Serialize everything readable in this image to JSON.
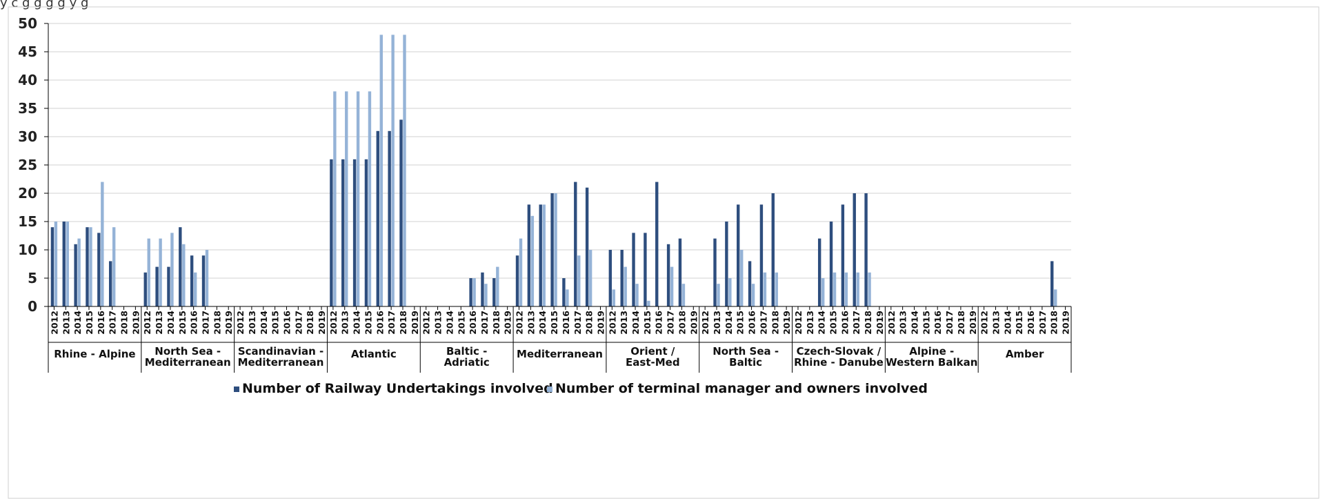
{
  "header_fragment": "y c  g        g                g                                                    g y g",
  "colors": {
    "series1": "#2E4E7E",
    "series2": "#95B3D7",
    "grid": "#D9D9D9",
    "axis": "#000000",
    "border": "#CFCFCF"
  },
  "chart_data": {
    "type": "bar",
    "title": "",
    "xlabel": "",
    "ylabel": "",
    "ylim": [
      0,
      50
    ],
    "yticks": [
      0,
      5,
      10,
      15,
      20,
      25,
      30,
      35,
      40,
      45,
      50
    ],
    "grid": true,
    "legend_position": "bottom",
    "years": [
      "2012",
      "2013",
      "2014",
      "2015",
      "2016",
      "2017",
      "2018",
      "2019"
    ],
    "groups": [
      {
        "name": "Rhine - Alpine",
        "railway": [
          14,
          15,
          11,
          14,
          13,
          8,
          null,
          null
        ],
        "terminal": [
          15,
          15,
          12,
          14,
          22,
          14,
          null,
          null
        ]
      },
      {
        "name": "North Sea - Mediterranean",
        "railway": [
          6,
          7,
          7,
          14,
          9,
          9,
          null,
          null
        ],
        "terminal": [
          12,
          12,
          13,
          11,
          6,
          10,
          null,
          null
        ]
      },
      {
        "name": "Scandinavian - Mediterranean",
        "railway": [
          null,
          null,
          null,
          null,
          null,
          null,
          null,
          null
        ],
        "terminal": [
          null,
          null,
          null,
          null,
          null,
          null,
          null,
          null
        ]
      },
      {
        "name": "Atlantic",
        "railway": [
          26,
          26,
          26,
          26,
          31,
          31,
          33,
          null
        ],
        "terminal": [
          38,
          38,
          38,
          38,
          48,
          48,
          48,
          null
        ]
      },
      {
        "name": "Baltic - Adriatic",
        "railway": [
          null,
          null,
          null,
          null,
          5,
          6,
          5,
          null
        ],
        "terminal": [
          null,
          null,
          null,
          null,
          5,
          4,
          7,
          null
        ]
      },
      {
        "name": "Mediterranean",
        "railway": [
          9,
          18,
          18,
          20,
          5,
          22,
          21,
          null
        ],
        "terminal": [
          12,
          16,
          18,
          20,
          3,
          9,
          10,
          null
        ]
      },
      {
        "name": "Orient / East-Med",
        "railway": [
          10,
          10,
          13,
          13,
          22,
          11,
          12,
          null
        ],
        "terminal": [
          3,
          7,
          4,
          1,
          null,
          7,
          4,
          null
        ]
      },
      {
        "name": "North Sea - Baltic",
        "railway": [
          null,
          12,
          15,
          18,
          8,
          18,
          20,
          null
        ],
        "terminal": [
          null,
          4,
          5,
          10,
          4,
          6,
          6,
          null
        ]
      },
      {
        "name": "Czech-Slovak / Rhine - Danube",
        "railway": [
          null,
          null,
          12,
          15,
          18,
          20,
          20,
          null
        ],
        "terminal": [
          null,
          null,
          5,
          6,
          6,
          6,
          6,
          null
        ]
      },
      {
        "name": "Alpine - Western Balkan",
        "railway": [
          null,
          null,
          null,
          null,
          null,
          null,
          null,
          null
        ],
        "terminal": [
          null,
          null,
          null,
          null,
          null,
          null,
          null,
          null
        ]
      },
      {
        "name": "Amber",
        "railway": [
          null,
          null,
          null,
          null,
          null,
          null,
          8,
          null
        ],
        "terminal": [
          null,
          null,
          null,
          null,
          null,
          null,
          3,
          null
        ]
      }
    ],
    "series": [
      {
        "name": "Number of Railway Undertakings involved",
        "key": "railway"
      },
      {
        "name": "Number of terminal manager and owners involved",
        "key": "terminal"
      }
    ]
  }
}
